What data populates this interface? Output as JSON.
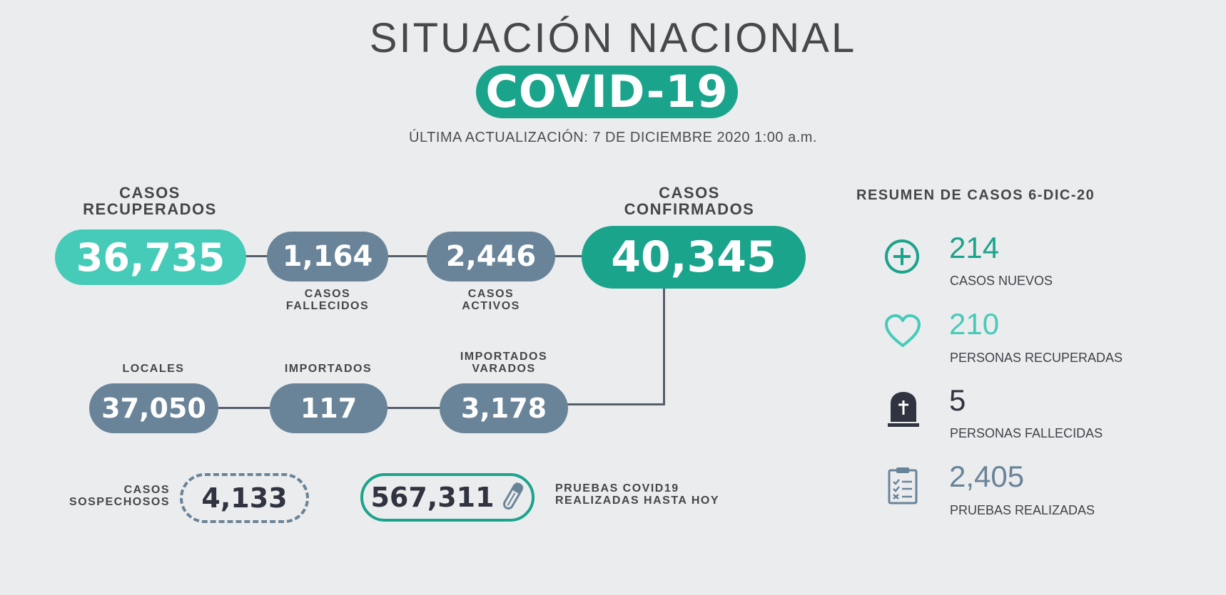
{
  "header": {
    "title": "SITUACIÓN NACIONAL",
    "badge": "COVID-19",
    "updated": "ÚLTIMA ACTUALIZACIÓN: 7 DE DICIEMBRE 2020 1:00 a.m."
  },
  "stats": {
    "recuperados": {
      "label1": "CASOS",
      "label2": "RECUPERADOS",
      "value": "36,735"
    },
    "fallecidos": {
      "label1": "CASOS",
      "label2": "FALLECIDOS",
      "value": "1,164"
    },
    "activos": {
      "label1": "CASOS",
      "label2": "ACTIVOS",
      "value": "2,446"
    },
    "confirmados": {
      "label1": "CASOS",
      "label2": "CONFIRMADOS",
      "value": "40,345"
    },
    "locales": {
      "label": "LOCALES",
      "value": "37,050"
    },
    "importados": {
      "label": "IMPORTADOS",
      "value": "117"
    },
    "varados": {
      "label1": "IMPORTADOS",
      "label2": "VARADOS",
      "value": "3,178"
    },
    "sospechosos": {
      "label1": "CASOS",
      "label2": "SOSPECHOSOS",
      "value": "4,133"
    },
    "pruebas": {
      "label1": "PRUEBAS COVID19",
      "label2": "REALIZADAS HASTA HOY",
      "value": "567,311",
      "icon": "test-tube-icon"
    }
  },
  "summary": {
    "title": "RESUMEN DE CASOS 6-DIC-20",
    "items": [
      {
        "value": "214",
        "label": "CASOS NUEVOS",
        "icon": "plus-circle-icon",
        "color": "#1ba48c"
      },
      {
        "value": "210",
        "label": "PERSONAS RECUPERADAS",
        "icon": "heart-icon",
        "color": "#46cbb9"
      },
      {
        "value": "5",
        "label": "PERSONAS FALLECIDAS",
        "icon": "tombstone-icon",
        "color": "#2f3440"
      },
      {
        "value": "2,405",
        "label": "PRUEBAS REALIZADAS",
        "icon": "clipboard-checklist-icon",
        "color": "#698499"
      }
    ]
  },
  "colors": {
    "teal": "#1ba48c",
    "light_teal": "#46cbb9",
    "slate": "#698499",
    "dark": "#2f3440",
    "background": "#ebeced"
  }
}
